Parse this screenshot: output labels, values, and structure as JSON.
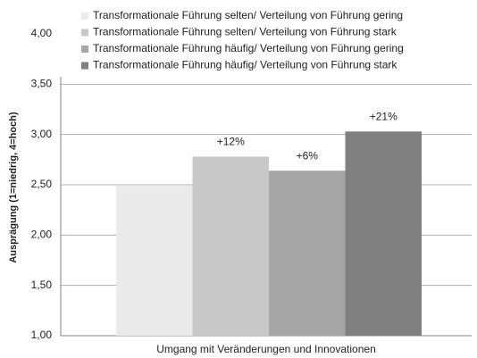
{
  "chart_data": {
    "type": "bar",
    "ylabel": "Ausprägung (1=niedrig, 4=hoch)",
    "categories": [
      "Umgang mit Veränderungen und Innovationen"
    ],
    "series": [
      {
        "name": "Transformationale Führung selten/ Verteilung von Führung gering",
        "color": "#ebebeb",
        "values": [
          2.49
        ]
      },
      {
        "name": "Transformationale Führung selten/ Verteilung von Führung stark",
        "color": "#c8c8c8",
        "values": [
          2.78
        ],
        "annotation": "+12%"
      },
      {
        "name": "Transformationale Führung häufig/ Verteilung von Führung gering",
        "color": "#a6a6a6",
        "values": [
          2.64
        ],
        "annotation": "+6%"
      },
      {
        "name": "Transformationale Führung häufig/ Verteilung von Führung stark",
        "color": "#808080",
        "values": [
          3.03
        ],
        "annotation": "+21%"
      }
    ],
    "ylim": [
      1,
      4
    ],
    "yticks": [
      {
        "value": 1,
        "label": "1,00"
      },
      {
        "value": 1.5,
        "label": "1,50"
      },
      {
        "value": 2,
        "label": "2,00"
      },
      {
        "value": 2.5,
        "label": "2,50"
      },
      {
        "value": 3,
        "label": "3,00"
      },
      {
        "value": 3.5,
        "label": "3,50"
      },
      {
        "value": 4,
        "label": "4,00"
      }
    ],
    "grid": true
  }
}
